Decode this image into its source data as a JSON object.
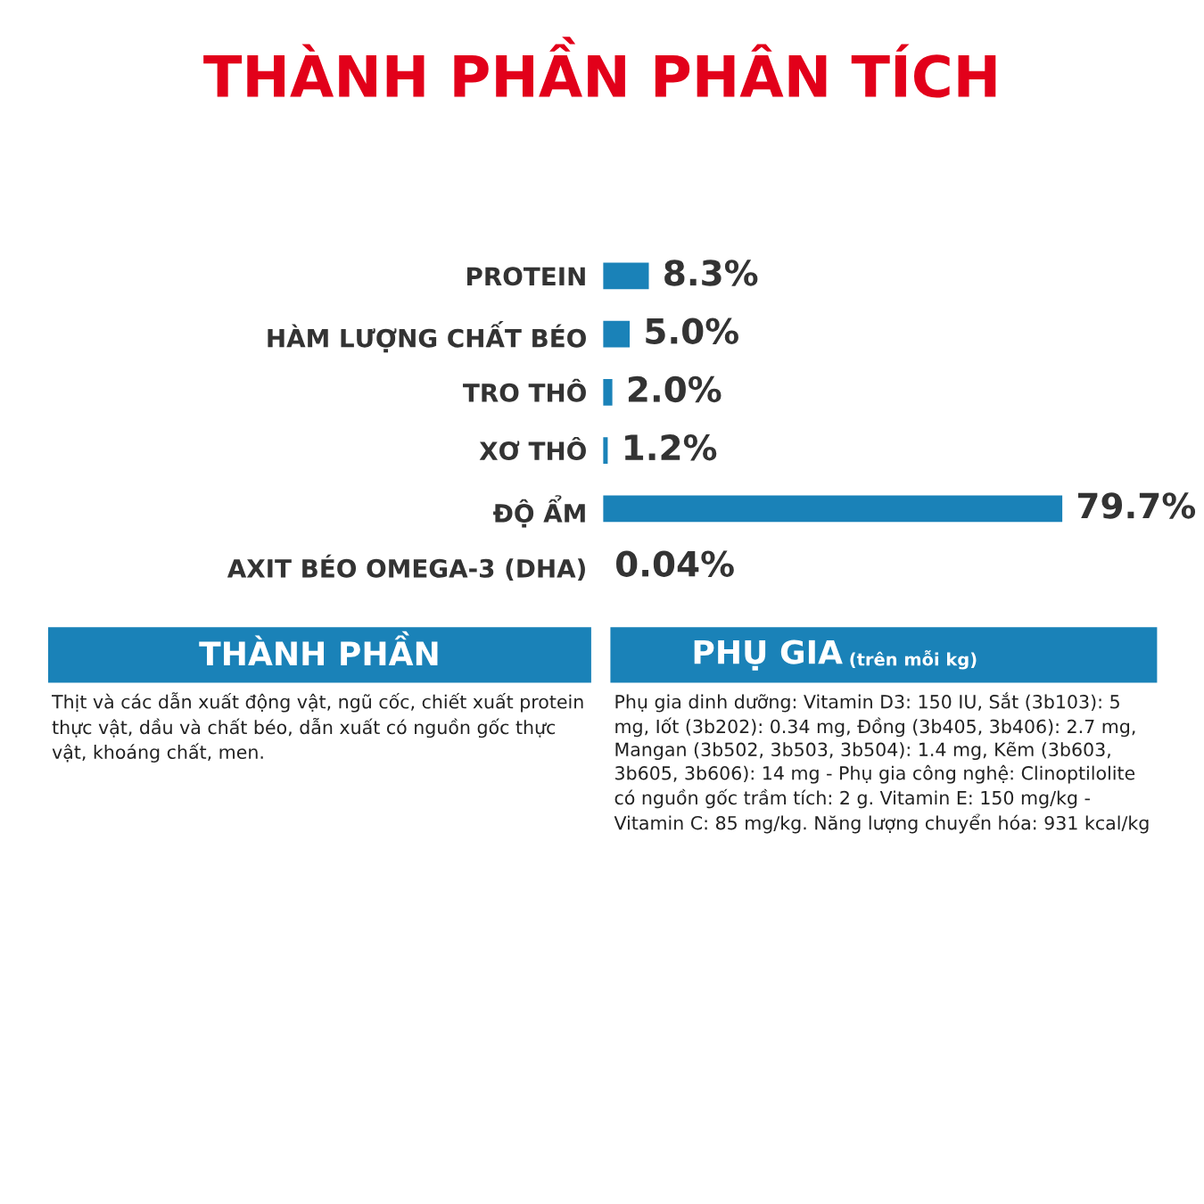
{
  "chart_data": {
    "type": "bar",
    "orientation": "horizontal",
    "title": "THÀNH PHẦN PHÂN TÍCH",
    "categories": [
      "PROTEIN",
      "HÀM LƯỢNG CHẤT BÉO",
      "TRO THÔ",
      "XƠ THÔ",
      "ĐỘ ẨM",
      "AXIT BÉO OMEGA-3 (DHA)"
    ],
    "values": [
      8.3,
      5.0,
      2.0,
      1.2,
      79.7,
      0.04
    ],
    "value_labels": [
      "8.3%",
      "5.0%",
      "2.0%",
      "1.2%",
      "79.7%",
      "0.04%"
    ],
    "color": "#1a82b8",
    "annotations": [
      "THÀNH PHẦN",
      "Thịt và các dẫn xuất động vật, ngũ cốc, chiết xuất protein thực vật, dầu và chất béo, dẫn xuất có nguồn gốc thực vật, khoáng chất, men.",
      "PHỤ GIA",
      "(trên mỗi kg)",
      "Phụ gia dinh dưỡng: Vitamin D3: 150 IU, Sắt (3b103): 5 mg, Iốt (3b202): 0.34 mg, Đồng (3b405, 3b406): 2.7 mg, Mangan (3b502, 3b503, 3b504): 1.4 mg, Kẽm (3b603, 3b605, 3b606): 14 mg - Phụ gia công nghệ: Clinoptilolite có nguồn gốc trầm tích: 2 g. Vitamin E: 150 mg/kg - Vitamin C: 85 mg/kg. Năng lượng chuyển hóa: 931 kcal/kg"
    ]
  }
}
